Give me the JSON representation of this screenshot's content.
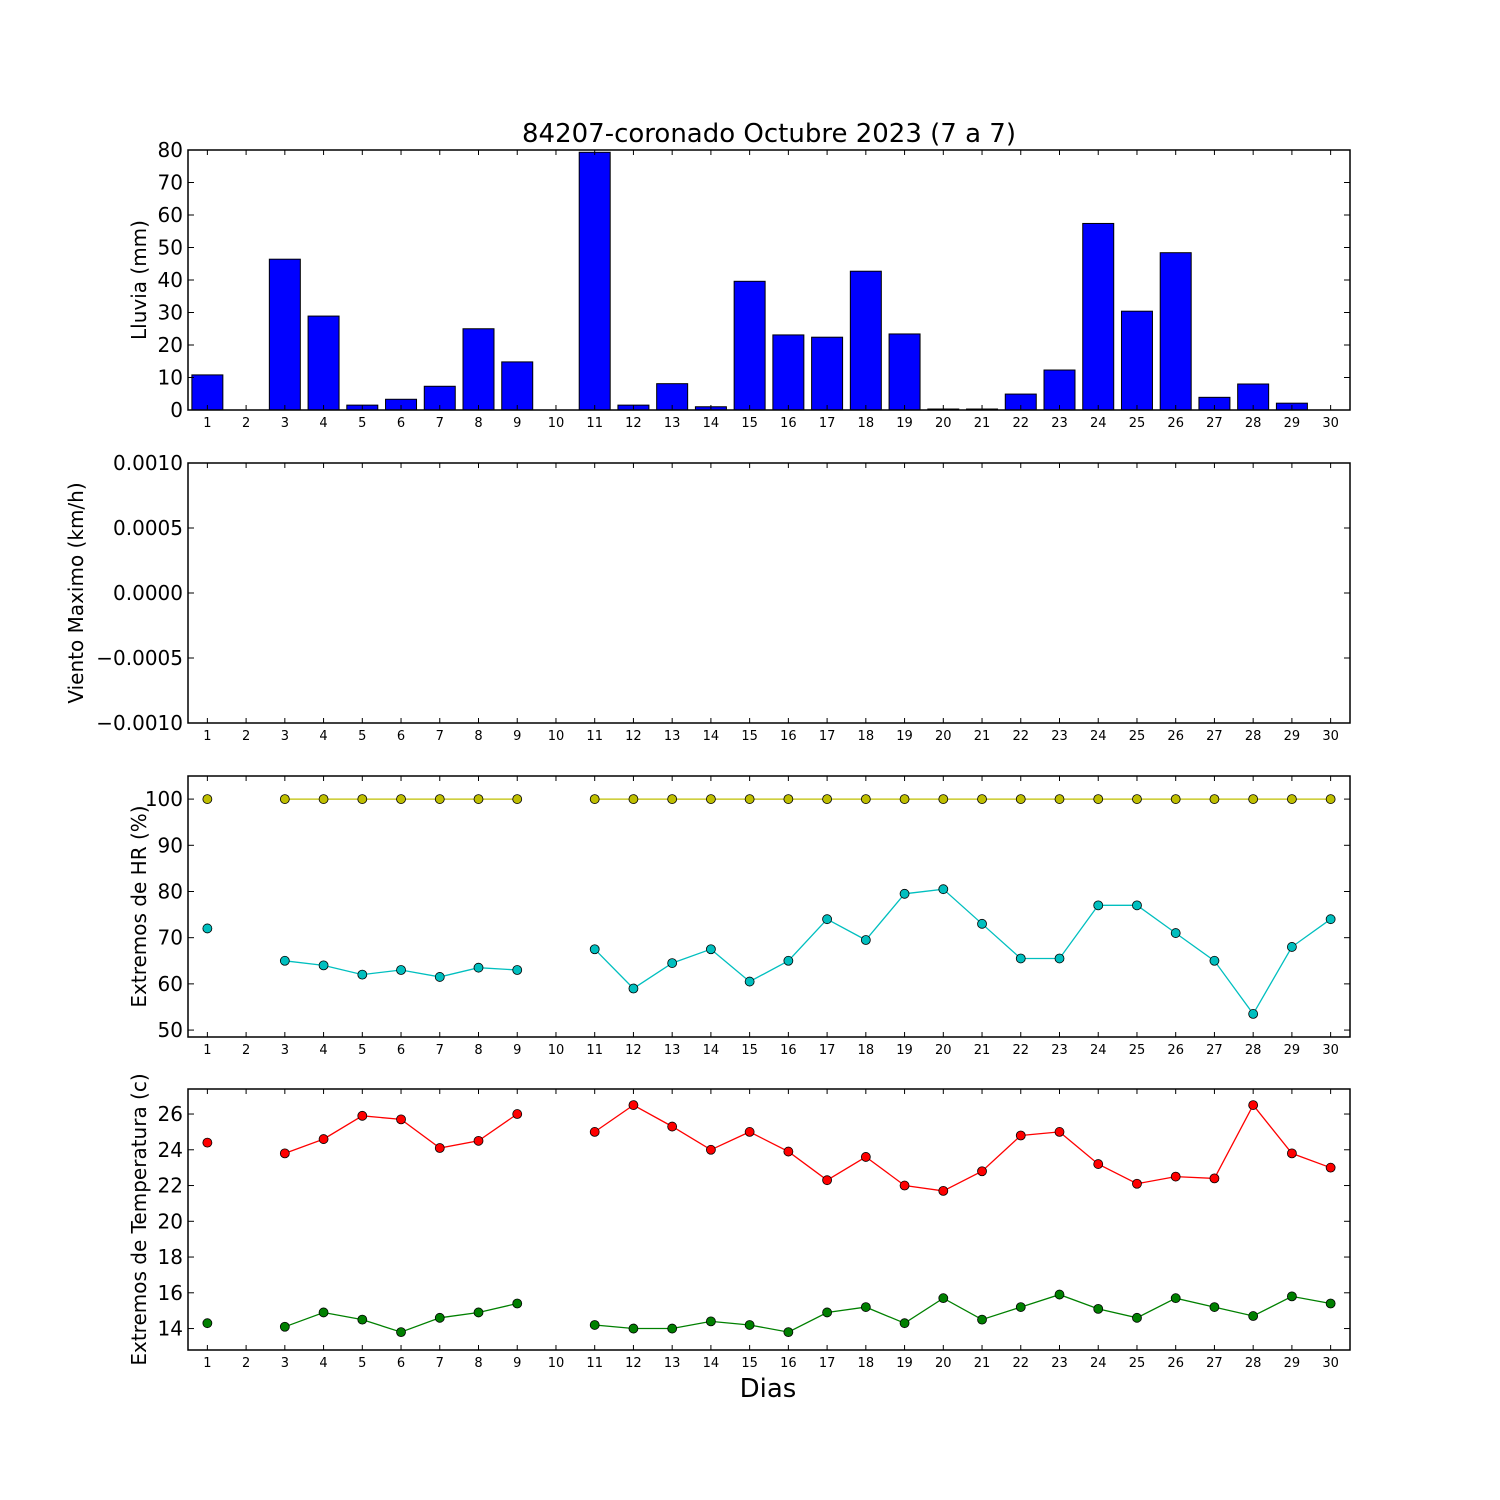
{
  "figure": {
    "title": "84207-coronado Octubre 2023  (7 a 7)",
    "xlabel": "Dias"
  },
  "chart_data": [
    {
      "type": "bar",
      "ylabel": "Lluvia (mm)",
      "ylim": [
        0,
        80
      ],
      "yticks": [
        "0",
        "10",
        "20",
        "30",
        "40",
        "50",
        "60",
        "70",
        "80"
      ],
      "categories": [
        "1",
        "2",
        "3",
        "4",
        "5",
        "6",
        "7",
        "8",
        "9",
        "10",
        "11",
        "12",
        "13",
        "14",
        "15",
        "16",
        "17",
        "18",
        "19",
        "20",
        "21",
        "22",
        "23",
        "24",
        "25",
        "26",
        "27",
        "28",
        "29",
        "30"
      ],
      "values": [
        10.8,
        0,
        46.4,
        28.9,
        1.5,
        3.3,
        7.3,
        25.0,
        14.8,
        0,
        79.3,
        1.5,
        8.1,
        1.0,
        39.6,
        23.1,
        22.4,
        42.7,
        23.4,
        0.3,
        0.3,
        4.9,
        12.3,
        57.4,
        30.4,
        48.4,
        3.9,
        8.0,
        2.1,
        0
      ],
      "color": "#0000ff"
    },
    {
      "type": "line",
      "ylabel": "Viento Maximo (km/h)",
      "ylim": [
        -0.001,
        0.001
      ],
      "yticks": [
        "−0.0010",
        "−0.0005",
        "0.0000",
        "0.0005",
        "0.0010"
      ],
      "categories": [
        "1",
        "2",
        "3",
        "4",
        "5",
        "6",
        "7",
        "8",
        "9",
        "10",
        "11",
        "12",
        "13",
        "14",
        "15",
        "16",
        "17",
        "18",
        "19",
        "20",
        "21",
        "22",
        "23",
        "24",
        "25",
        "26",
        "27",
        "28",
        "29",
        "30"
      ],
      "series": []
    },
    {
      "type": "line",
      "ylabel": "Extremos de HR (%)",
      "ylim": [
        48.5,
        105
      ],
      "yticks": [
        "50",
        "60",
        "70",
        "80",
        "90",
        "100"
      ],
      "categories": [
        "1",
        "2",
        "3",
        "4",
        "5",
        "6",
        "7",
        "8",
        "9",
        "10",
        "11",
        "12",
        "13",
        "14",
        "15",
        "16",
        "17",
        "18",
        "19",
        "20",
        "21",
        "22",
        "23",
        "24",
        "25",
        "26",
        "27",
        "28",
        "29",
        "30"
      ],
      "series": [
        {
          "color": "#bfbf00",
          "values": [
            100,
            null,
            100,
            100,
            100,
            100,
            100,
            100,
            100,
            null,
            100,
            100,
            100,
            100,
            100,
            100,
            100,
            100,
            100,
            100,
            100,
            100,
            100,
            100,
            100,
            100,
            100,
            100,
            100,
            100
          ]
        },
        {
          "color": "#00bfbf",
          "values": [
            72,
            null,
            65,
            64,
            62,
            63,
            61.5,
            63.5,
            63,
            null,
            67.5,
            59,
            64.5,
            67.5,
            60.5,
            65,
            74,
            69.5,
            79.5,
            80.5,
            73,
            65.5,
            65.5,
            77,
            77,
            71,
            65,
            53.5,
            68,
            74
          ]
        }
      ]
    },
    {
      "type": "line",
      "ylabel": "Extremos de Temperatura (c)",
      "ylim": [
        12.8,
        27.4
      ],
      "yticks": [
        "14",
        "16",
        "18",
        "20",
        "22",
        "24",
        "26"
      ],
      "categories": [
        "1",
        "2",
        "3",
        "4",
        "5",
        "6",
        "7",
        "8",
        "9",
        "10",
        "11",
        "12",
        "13",
        "14",
        "15",
        "16",
        "17",
        "18",
        "19",
        "20",
        "21",
        "22",
        "23",
        "24",
        "25",
        "26",
        "27",
        "28",
        "29",
        "30"
      ],
      "series": [
        {
          "color": "#ff0000",
          "values": [
            24.4,
            null,
            23.8,
            24.6,
            25.9,
            25.7,
            24.1,
            24.5,
            26.0,
            null,
            25.0,
            26.5,
            25.3,
            24.0,
            25.0,
            23.9,
            22.3,
            23.6,
            22.0,
            21.7,
            22.8,
            24.8,
            25.0,
            23.2,
            22.1,
            22.5,
            22.4,
            26.5,
            23.8,
            23.0
          ]
        },
        {
          "color": "#008000",
          "values": [
            14.3,
            null,
            14.1,
            14.9,
            14.5,
            13.8,
            14.6,
            14.9,
            15.4,
            null,
            14.2,
            14.0,
            14.0,
            14.4,
            14.2,
            13.8,
            14.9,
            15.2,
            14.3,
            15.7,
            14.5,
            15.2,
            15.9,
            15.1,
            14.6,
            15.7,
            15.2,
            14.7,
            15.8,
            15.4
          ]
        }
      ]
    }
  ]
}
